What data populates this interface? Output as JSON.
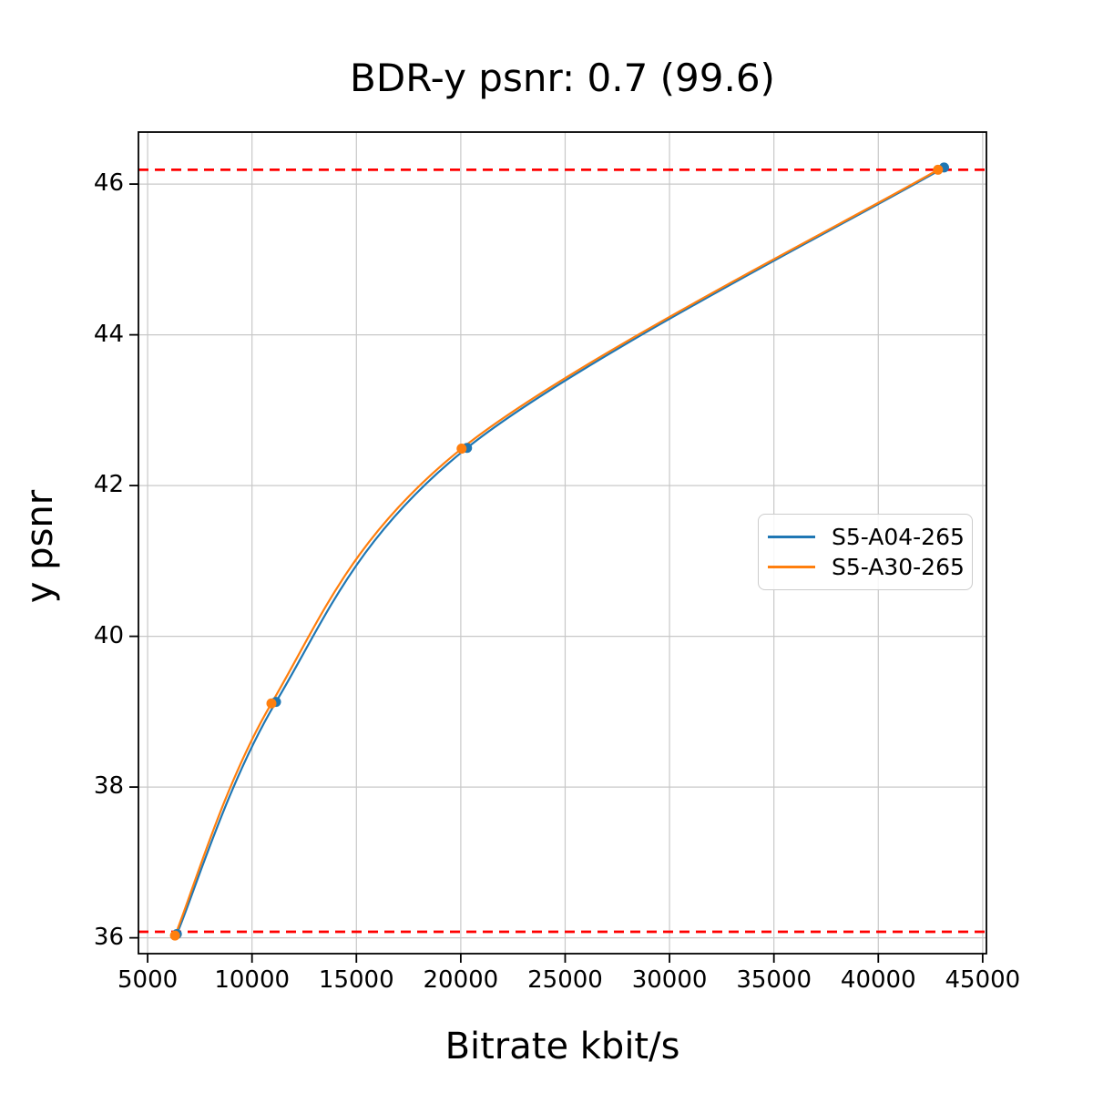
{
  "figure": {
    "title": "BDR-y psnr: 0.7 (99.6)",
    "xlabel": "Bitrate kbit/s",
    "ylabel": "y psnr"
  },
  "chart_data": {
    "type": "line",
    "title": "BDR-y psnr: 0.7 (99.6)",
    "xlabel": "Bitrate kbit/s",
    "ylabel": "y psnr",
    "xlim": [
      4560,
      45180
    ],
    "ylim": [
      35.79,
      46.69
    ],
    "x_ticks": [
      5000,
      10000,
      15000,
      20000,
      25000,
      30000,
      35000,
      40000,
      45000
    ],
    "x_tick_labels": [
      "5000",
      "10000",
      "15000",
      "20000",
      "25000",
      "30000",
      "35000",
      "40000",
      "45000"
    ],
    "y_ticks": [
      36,
      38,
      40,
      42,
      44,
      46
    ],
    "y_tick_labels": [
      "36",
      "38",
      "40",
      "42",
      "44",
      "46"
    ],
    "grid": true,
    "legend_position": "center-right",
    "series": [
      {
        "name": "S5-A04-265",
        "color": "#1f77b4",
        "marker": "circle",
        "x": [
          6400,
          11150,
          20300,
          43150
        ],
        "y": [
          36.05,
          39.13,
          42.5,
          46.22
        ]
      },
      {
        "name": "S5-A30-265",
        "color": "#ff7f0e",
        "marker": "circle",
        "x": [
          6310,
          10930,
          20040,
          42860
        ],
        "y": [
          36.03,
          39.11,
          42.49,
          46.19
        ]
      }
    ],
    "hlines": [
      {
        "y": 46.19,
        "color": "#ff0000",
        "style": "dashed"
      },
      {
        "y": 36.08,
        "color": "#ff0000",
        "style": "dashed"
      }
    ]
  },
  "colors": {
    "grid": "#c8c8c8",
    "axis": "#000000",
    "background": "#ffffff"
  }
}
